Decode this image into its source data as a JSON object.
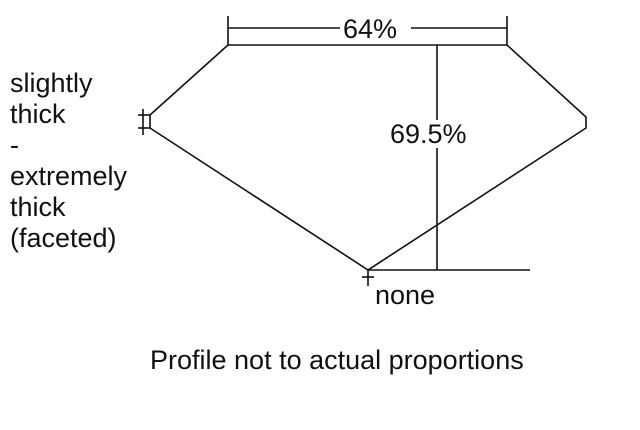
{
  "girdle_label": [
    "slightly",
    "thick",
    "-",
    "extremely",
    "thick",
    "(faceted)"
  ],
  "table_percent": "64%",
  "depth_percent": "69.5%",
  "culet_label": "none",
  "caption": "Profile not to actual proportions"
}
